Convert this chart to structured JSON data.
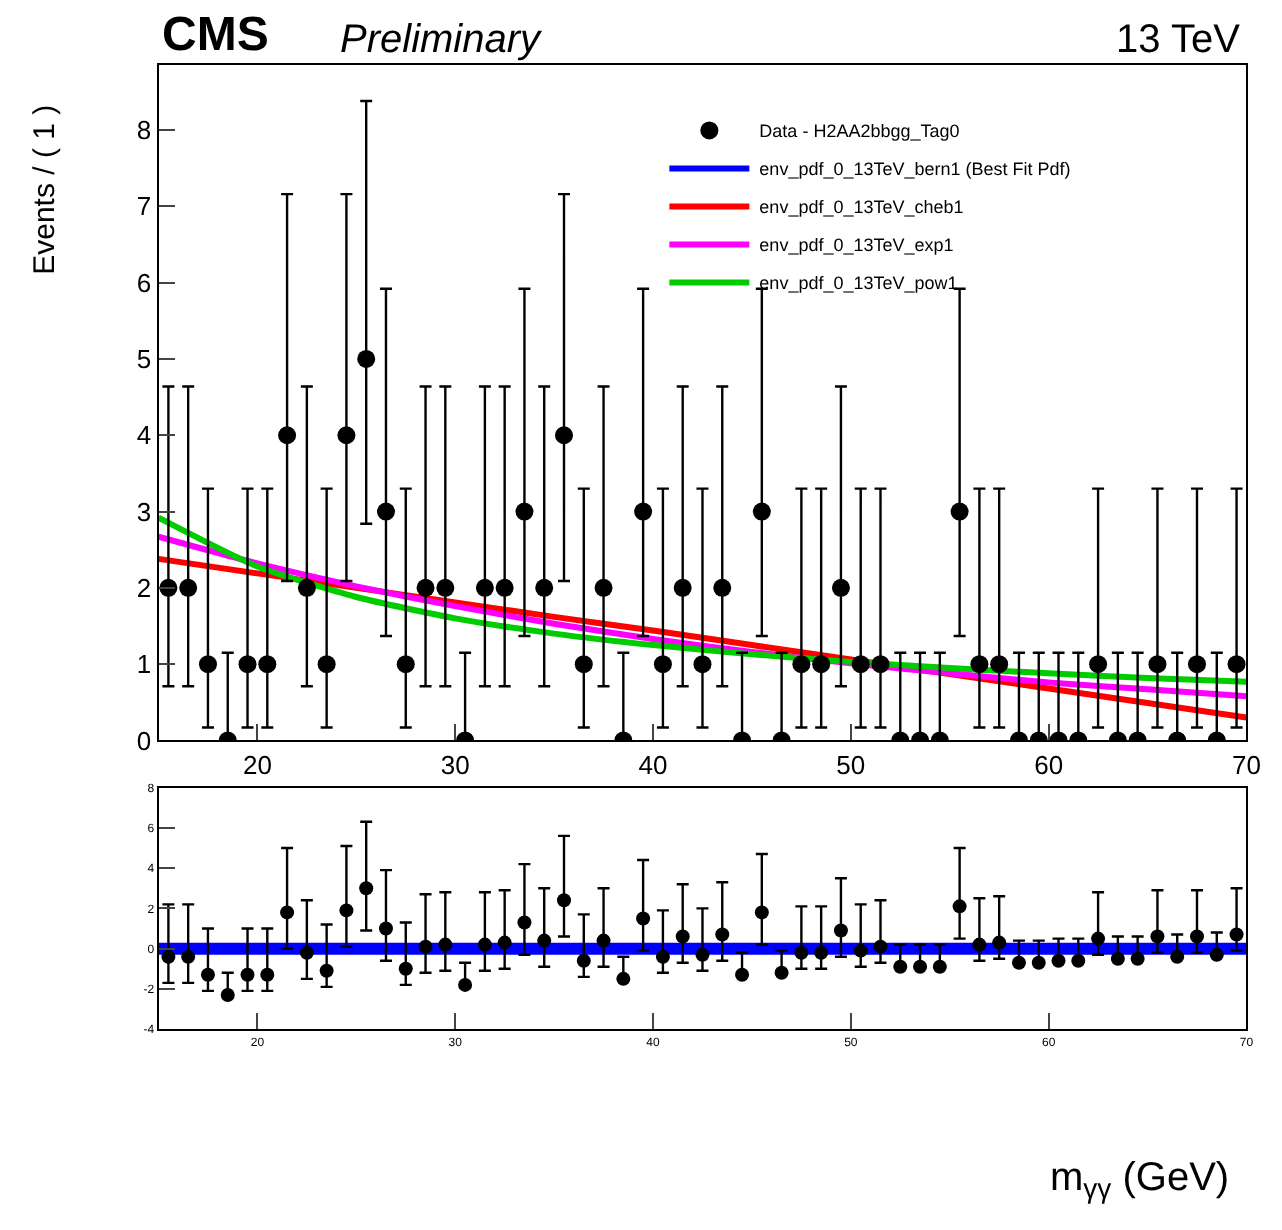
{
  "chart_data": [
    {
      "type": "scatter",
      "title": "CMS",
      "subtitle": "Preliminary",
      "ylabel": "Events / ( 1 )",
      "annotations": [
        "13 TeV"
      ],
      "xlim": [
        15,
        70
      ],
      "xticks": [
        20,
        30,
        40,
        50,
        60,
        70
      ],
      "ylim": [
        0,
        8.85
      ],
      "yticks": [
        0,
        1,
        2,
        3,
        4,
        5,
        6,
        7,
        8
      ],
      "legend": "top right",
      "series": [
        {
          "name": "Data - H2AA2bbgg_Tag0",
          "marker": "circle",
          "color": "#000000",
          "x": [
            15.5,
            16.5,
            17.5,
            18.5,
            19.5,
            20.5,
            21.5,
            22.5,
            23.5,
            24.5,
            25.5,
            26.5,
            27.5,
            28.5,
            29.5,
            30.5,
            31.5,
            32.5,
            33.5,
            34.5,
            35.5,
            36.5,
            37.5,
            38.5,
            39.5,
            40.5,
            41.5,
            42.5,
            43.5,
            44.5,
            45.5,
            46.5,
            47.5,
            48.5,
            49.5,
            50.5,
            51.5,
            52.5,
            53.5,
            54.5,
            55.5,
            56.5,
            57.5,
            58.5,
            59.5,
            60.5,
            61.5,
            62.5,
            63.5,
            64.5,
            65.5,
            66.5,
            67.5,
            68.5,
            69.5
          ],
          "values": [
            2,
            2,
            1,
            0,
            1,
            1,
            4,
            2,
            1,
            4,
            5,
            3,
            1,
            2,
            2,
            0,
            2,
            2,
            3,
            2,
            4,
            1,
            2,
            0,
            3,
            1,
            2,
            1,
            2,
            0,
            3,
            0,
            1,
            1,
            2,
            1,
            1,
            0,
            0,
            0,
            3,
            1,
            1,
            0,
            0,
            0,
            0,
            1,
            0,
            0,
            1,
            0,
            1,
            0,
            1
          ],
          "errors": [
            [
              0.71,
              4.64
            ],
            [
              0.71,
              4.64
            ],
            [
              0.17,
              3.3
            ],
            [
              0,
              1.15
            ],
            [
              0.17,
              3.3
            ],
            [
              0.17,
              3.3
            ],
            [
              2.09,
              7.16
            ],
            [
              0.71,
              4.64
            ],
            [
              0.17,
              3.3
            ],
            [
              2.09,
              7.16
            ],
            [
              2.84,
              8.38
            ],
            [
              1.37,
              5.92
            ],
            [
              0.17,
              3.3
            ],
            [
              0.71,
              4.64
            ],
            [
              0.71,
              4.64
            ],
            [
              0,
              1.15
            ],
            [
              0.71,
              4.64
            ],
            [
              0.71,
              4.64
            ],
            [
              1.37,
              5.92
            ],
            [
              0.71,
              4.64
            ],
            [
              2.09,
              7.16
            ],
            [
              0.17,
              3.3
            ],
            [
              0.71,
              4.64
            ],
            [
              0,
              1.15
            ],
            [
              1.37,
              5.92
            ],
            [
              0.17,
              3.3
            ],
            [
              0.71,
              4.64
            ],
            [
              0.17,
              3.3
            ],
            [
              0.71,
              4.64
            ],
            [
              0,
              1.15
            ],
            [
              1.37,
              5.92
            ],
            [
              0,
              1.15
            ],
            [
              0.17,
              3.3
            ],
            [
              0.17,
              3.3
            ],
            [
              0.71,
              4.64
            ],
            [
              0.17,
              3.3
            ],
            [
              0.17,
              3.3
            ],
            [
              0,
              1.15
            ],
            [
              0,
              1.15
            ],
            [
              0,
              1.15
            ],
            [
              1.37,
              5.92
            ],
            [
              0.17,
              3.3
            ],
            [
              0.17,
              3.3
            ],
            [
              0,
              1.15
            ],
            [
              0,
              1.15
            ],
            [
              0,
              1.15
            ],
            [
              0,
              1.15
            ],
            [
              0.17,
              3.3
            ],
            [
              0,
              1.15
            ],
            [
              0,
              1.15
            ],
            [
              0.17,
              3.3
            ],
            [
              0,
              1.15
            ],
            [
              0.17,
              3.3
            ],
            [
              0,
              1.15
            ],
            [
              0.17,
              3.3
            ]
          ]
        },
        {
          "name": "env_pdf_0_13TeV_bern1 (Best Fit Pdf)",
          "type": "line",
          "marker": "none",
          "color": "#0000ff"
        },
        {
          "name": "env_pdf_0_13TeV_cheb1",
          "type": "line",
          "marker": "none",
          "color": "#ff0000",
          "x": [
            15,
            20,
            25,
            30,
            35,
            40,
            45,
            50,
            55,
            60,
            65,
            70
          ],
          "values": [
            2.38,
            2.19,
            2.0,
            1.81,
            1.62,
            1.44,
            1.25,
            1.06,
            0.87,
            0.68,
            0.49,
            0.3
          ]
        },
        {
          "name": "env_pdf_0_13TeV_exp1",
          "type": "line",
          "marker": "none",
          "color": "#ff00ff",
          "x": [
            15,
            20,
            25,
            30,
            35,
            40,
            45,
            50,
            55,
            60,
            65,
            70
          ],
          "values": [
            2.67,
            2.32,
            2.02,
            1.76,
            1.53,
            1.33,
            1.16,
            1.01,
            0.88,
            0.76,
            0.67,
            0.58
          ]
        },
        {
          "name": "env_pdf_0_13TeV_pow1",
          "type": "line",
          "marker": "none",
          "color": "#00cc00",
          "x": [
            15,
            20,
            25,
            30,
            35,
            40,
            45,
            50,
            55,
            60,
            65,
            70
          ],
          "values": [
            2.92,
            2.28,
            1.88,
            1.6,
            1.4,
            1.25,
            1.13,
            1.03,
            0.95,
            0.88,
            0.82,
            0.77
          ]
        }
      ]
    },
    {
      "type": "scatter",
      "xlabel": "m$_{γγ}$ (GeV)",
      "xlim": [
        15,
        70
      ],
      "xticks": [
        20,
        30,
        40,
        50,
        60,
        70
      ],
      "ylim": [
        -4,
        8
      ],
      "yticks": [
        -4,
        -2,
        0,
        2,
        4,
        6,
        8
      ],
      "series": [
        {
          "marker": "circle",
          "color": "#000000",
          "x": [
            15.5,
            16.5,
            17.5,
            18.5,
            19.5,
            20.5,
            21.5,
            22.5,
            23.5,
            24.5,
            25.5,
            26.5,
            27.5,
            28.5,
            29.5,
            30.5,
            31.5,
            32.5,
            33.5,
            34.5,
            35.5,
            36.5,
            37.5,
            38.5,
            39.5,
            40.5,
            41.5,
            42.5,
            43.5,
            44.5,
            45.5,
            46.5,
            47.5,
            48.5,
            49.5,
            50.5,
            51.5,
            52.5,
            53.5,
            54.5,
            55.5,
            56.5,
            57.5,
            58.5,
            59.5,
            60.5,
            61.5,
            62.5,
            63.5,
            64.5,
            65.5,
            66.5,
            67.5,
            68.5,
            69.5
          ],
          "values": [
            -0.4,
            -0.4,
            -1.3,
            -2.3,
            -1.3,
            -1.3,
            1.8,
            -0.2,
            -1.1,
            1.9,
            3.0,
            1.0,
            -1.0,
            0.1,
            0.2,
            -1.8,
            0.2,
            0.3,
            1.3,
            0.4,
            2.4,
            -0.6,
            0.4,
            -1.5,
            1.5,
            -0.4,
            0.6,
            -0.3,
            0.7,
            -1.3,
            1.8,
            -1.2,
            -0.2,
            -0.2,
            0.9,
            -0.1,
            0.1,
            -0.9,
            -0.9,
            -0.9,
            2.1,
            0.2,
            0.3,
            -0.7,
            -0.7,
            -0.6,
            -0.6,
            0.5,
            -0.5,
            -0.5,
            0.6,
            -0.4,
            0.6,
            -0.3,
            0.7
          ],
          "errors": [
            [
              -1.7,
              2.2
            ],
            [
              -1.7,
              2.2
            ],
            [
              -2.1,
              1.0
            ],
            [
              -2.3,
              -1.2
            ],
            [
              -2.1,
              1.0
            ],
            [
              -2.1,
              1.0
            ],
            [
              0.0,
              5.0
            ],
            [
              -1.5,
              2.4
            ],
            [
              -1.9,
              1.2
            ],
            [
              0.1,
              5.1
            ],
            [
              0.9,
              6.3
            ],
            [
              -0.6,
              3.9
            ],
            [
              -1.8,
              1.3
            ],
            [
              -1.2,
              2.7
            ],
            [
              -1.1,
              2.8
            ],
            [
              -1.8,
              -0.7
            ],
            [
              -1.1,
              2.8
            ],
            [
              -1.0,
              2.9
            ],
            [
              -0.3,
              4.2
            ],
            [
              -0.9,
              3.0
            ],
            [
              0.6,
              5.6
            ],
            [
              -1.4,
              1.7
            ],
            [
              -0.9,
              3.0
            ],
            [
              -1.5,
              -0.4
            ],
            [
              -0.1,
              4.4
            ],
            [
              -1.2,
              1.9
            ],
            [
              -0.7,
              3.2
            ],
            [
              -1.1,
              2.0
            ],
            [
              -0.6,
              3.3
            ],
            [
              -1.3,
              -0.2
            ],
            [
              0.2,
              4.7
            ],
            [
              -1.2,
              -0.1
            ],
            [
              -1.0,
              2.1
            ],
            [
              -1.0,
              2.1
            ],
            [
              -0.4,
              3.5
            ],
            [
              -0.9,
              2.2
            ],
            [
              -0.7,
              2.4
            ],
            [
              -0.9,
              0.2
            ],
            [
              -0.9,
              0.2
            ],
            [
              -0.9,
              0.2
            ],
            [
              0.5,
              5.0
            ],
            [
              -0.6,
              2.5
            ],
            [
              -0.5,
              2.6
            ],
            [
              -0.7,
              0.4
            ],
            [
              -0.7,
              0.4
            ],
            [
              -0.6,
              0.5
            ],
            [
              -0.6,
              0.5
            ],
            [
              -0.3,
              2.8
            ],
            [
              -0.5,
              0.6
            ],
            [
              -0.5,
              0.6
            ],
            [
              -0.2,
              2.9
            ],
            [
              -0.4,
              0.7
            ],
            [
              -0.2,
              2.9
            ],
            [
              -0.3,
              0.8
            ],
            [
              -0.1,
              3.0
            ]
          ]
        },
        {
          "type": "line",
          "marker": "none",
          "color": "#0000ff",
          "x": [
            15,
            70
          ],
          "values": [
            0,
            0
          ]
        }
      ]
    }
  ]
}
